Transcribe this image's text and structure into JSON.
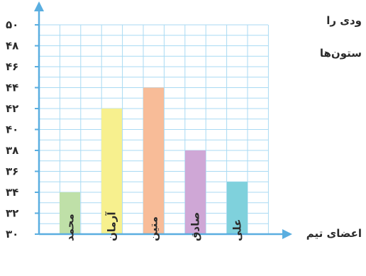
{
  "chart_data": {
    "type": "bar",
    "xlabel": "اعضای تیم",
    "ylabel": "",
    "title": "",
    "y_tick_labels": [
      "۳۰",
      "۳۲",
      "۳۴",
      "۳۶",
      "۳۸",
      "۴۰",
      "۴۲",
      "۴۴",
      "۴۶",
      "۴۸",
      "۵۰"
    ],
    "ylim": [
      30,
      50
    ],
    "categories": [
      "محمد",
      "آرمان",
      "متین",
      "صادق",
      "علی"
    ],
    "values": [
      34,
      42,
      44,
      38,
      35
    ],
    "bar_colors": [
      "#bfe0a8",
      "#f7f08e",
      "#f8bc98",
      "#cfa7d6",
      "#7fd1dc"
    ],
    "grid": true,
    "axis_color": "#5aaee0",
    "grid_color": "#a9daf3"
  },
  "side_text": {
    "line1": "ودی را",
    "line2": "ستون‌ها"
  }
}
